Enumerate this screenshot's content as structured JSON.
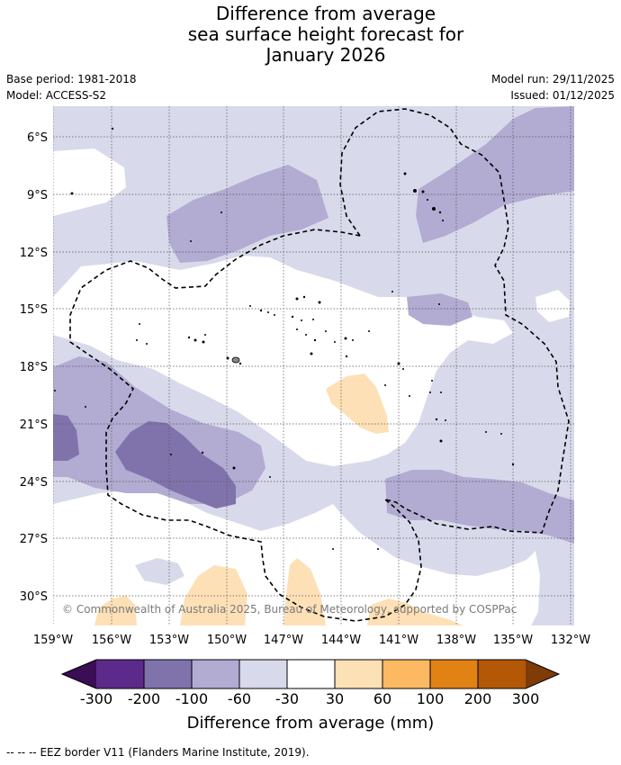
{
  "title": {
    "line1": "Difference from average",
    "line2": "sea surface height forecast for",
    "line3": "January 2026"
  },
  "meta": {
    "base_period": "Base period: 1981-2018",
    "model": "Model: ACCESS-S2",
    "model_run": "Model run: 29/11/2025",
    "issued": "Issued: 01/12/2025"
  },
  "map": {
    "lat_labels": [
      "6°S",
      "9°S",
      "12°S",
      "15°S",
      "18°S",
      "21°S",
      "24°S",
      "27°S",
      "30°S"
    ],
    "lon_labels": [
      "159°W",
      "156°W",
      "153°W",
      "150°W",
      "147°W",
      "144°W",
      "141°W",
      "138°W",
      "135°W",
      "132°W"
    ],
    "copyright": "© Commonwealth of Australia 2025, Bureau of Meteorology, supported by COSPPac"
  },
  "colorbar": {
    "title": "Difference from average (mm)",
    "ticks": [
      "-300",
      "-200",
      "-100",
      "-60",
      "-30",
      "30",
      "60",
      "100",
      "200",
      "300"
    ],
    "colors": {
      "under": "#3a0d54",
      "bin1": "#5c2a8a",
      "bin2": "#8073ac",
      "bin3": "#b2abd2",
      "bin4": "#d8daeb",
      "bin5": "#ffffff",
      "bin6": "#fee0b6",
      "bin7": "#fdb863",
      "bin8": "#e08214",
      "bin9": "#b35806",
      "over": "#7f3b08"
    }
  },
  "footer": {
    "dash": "-- -- --",
    "text": "EEZ border V11 (Flanders Marine Institute, 2019)."
  }
}
